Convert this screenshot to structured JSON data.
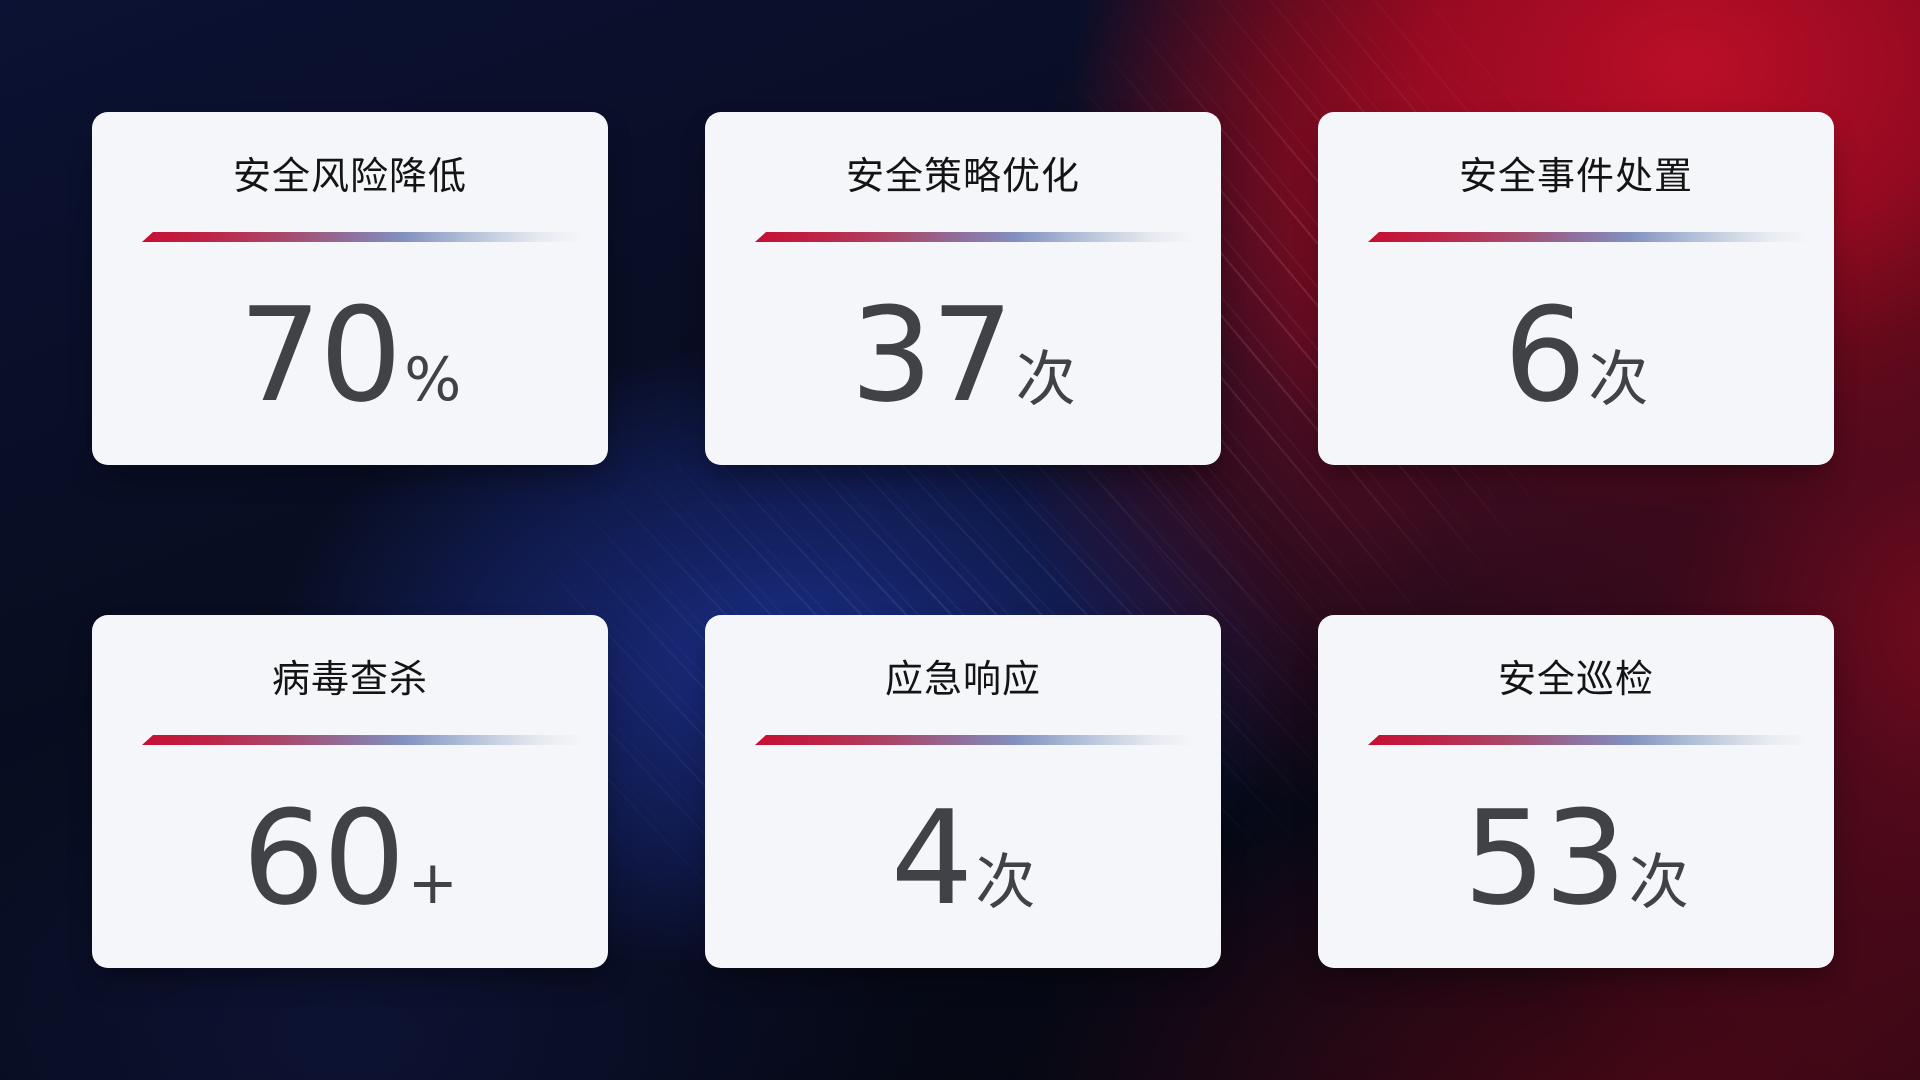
{
  "theme": {
    "card_bg": "#f5f6fa",
    "title_color": "#141414",
    "value_color": "#404248",
    "divider_red": "#c60f33",
    "divider_blue": "#8290c0",
    "bg_navy": "#0b1233",
    "bg_red": "#bb0e28",
    "bg_blue_glow": "#1b2f8a"
  },
  "cards": [
    {
      "title": "安全风险降低",
      "value": "70",
      "suffix": "%"
    },
    {
      "title": "安全策略优化",
      "value": "37",
      "suffix": "次"
    },
    {
      "title": "安全事件处置",
      "value": "6",
      "suffix": "次"
    },
    {
      "title": "病毒查杀",
      "value": "60",
      "suffix": "+"
    },
    {
      "title": "应急响应",
      "value": "4",
      "suffix": "次"
    },
    {
      "title": "安全巡检",
      "value": "53",
      "suffix": "次"
    }
  ]
}
